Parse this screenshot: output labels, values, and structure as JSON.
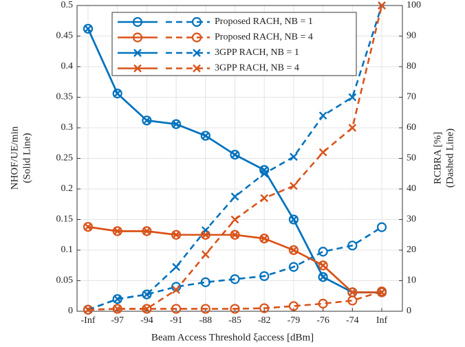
{
  "chart_data": {
    "type": "line",
    "xlabel": "Beam Access Threshold ξaccess [dBm]",
    "ylabel": [
      "NHOF/UE/min",
      "(Solid Line)"
    ],
    "y2label": [
      "RCBRA [%]",
      "(Dashed Line)"
    ],
    "categories": [
      "-Inf",
      "-97",
      "-94",
      "-91",
      "-88",
      "-85",
      "-82",
      "-79",
      "-76",
      "-74",
      "Inf"
    ],
    "ylim": [
      0,
      0.5
    ],
    "yticks": [
      0,
      0.05,
      0.1,
      0.15,
      0.2,
      0.25,
      0.3,
      0.35,
      0.4,
      0.45,
      0.5
    ],
    "y2lim": [
      0,
      100
    ],
    "y2ticks": [
      0,
      10,
      20,
      30,
      40,
      50,
      60,
      70,
      80,
      90,
      100
    ],
    "grid": true,
    "legend": "top",
    "series": [
      {
        "name": "Proposed RACH, NB = 1",
        "color": "#0072bd",
        "marker": "circle",
        "values": [
          0.462,
          0.356,
          0.312,
          0.306,
          0.287,
          0.256,
          0.231,
          0.15,
          0.056,
          0.031,
          0.031
        ],
        "values_y2": [
          0.5,
          4,
          5.5,
          8,
          9.5,
          10.5,
          11.5,
          14.5,
          19.5,
          21.5,
          27.5
        ]
      },
      {
        "name": "Proposed RACH, NB = 4",
        "color": "#d95319",
        "marker": "circle",
        "values": [
          0.138,
          0.131,
          0.131,
          0.125,
          0.125,
          0.125,
          0.119,
          0.1,
          0.075,
          0.031,
          0.031
        ],
        "values_y2": [
          0.5,
          0.8,
          0.8,
          0.8,
          0.8,
          0.8,
          1,
          1.7,
          2.5,
          3.5,
          6.5
        ]
      },
      {
        "name": "3GPP RACH, NB = 1",
        "color": "#0072bd",
        "marker": "x",
        "values": [
          0.462,
          0.356,
          0.312,
          0.306,
          0.287,
          0.256,
          0.231,
          0.15,
          0.056,
          0.031,
          0.031
        ],
        "values_y2": [
          0.5,
          4,
          5.5,
          14.5,
          26.5,
          37.5,
          45,
          50.5,
          64,
          70,
          100
        ]
      },
      {
        "name": "3GPP RACH, NB = 4",
        "color": "#d95319",
        "marker": "x",
        "values": [
          0.138,
          0.131,
          0.131,
          0.125,
          0.125,
          0.125,
          0.119,
          0.1,
          0.075,
          0.031,
          0.031
        ],
        "values_y2": [
          0.5,
          0.8,
          0.8,
          7,
          18.6,
          30,
          37,
          41,
          52,
          60,
          100
        ]
      }
    ]
  }
}
